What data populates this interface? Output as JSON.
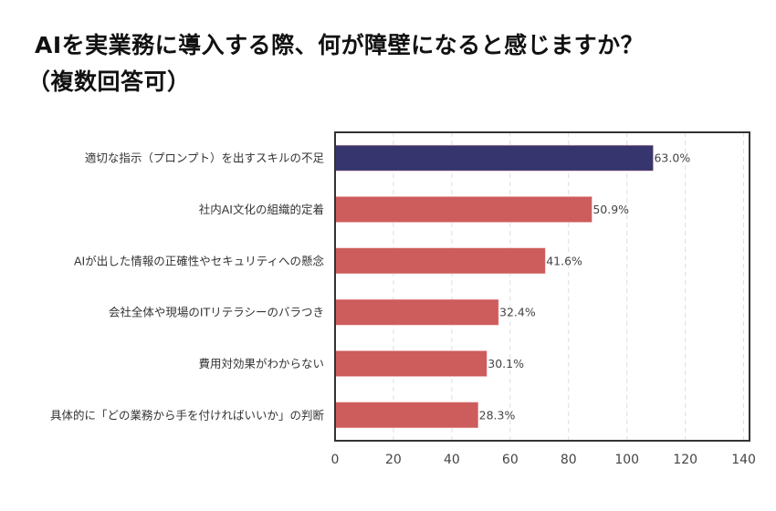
{
  "chart_data": {
    "type": "bar",
    "orientation": "horizontal",
    "title": "AIを実業務に導入する際、何が障壁になると感じますか？（複数回答可）",
    "title_lines": [
      "AIを実業務に導入する際、何が障壁になると感じますか？",
      "（複数回答可）"
    ],
    "categories": [
      "適切な指示（プロンプト）を出すスキルの不足",
      "社内AI文化の組織的定着",
      "AIが出した情報の正確性やセキュリティへの懸念",
      "会社全体や現場のITリテラシーのバラつき",
      "費用対効果がわからない",
      "具体的に「どの業務から手を付ければいいか」の判断"
    ],
    "values": [
      109,
      88,
      72,
      56,
      52,
      49
    ],
    "data_labels": [
      "63.0%",
      "50.9%",
      "41.6%",
      "32.4%",
      "30.1%",
      "28.3%"
    ],
    "bar_colors": [
      "#36356e",
      "#cd5c5c",
      "#cd5c5c",
      "#cd5c5c",
      "#cd5c5c",
      "#cd5c5c"
    ],
    "xlim": [
      0,
      142
    ],
    "xticks": [
      0,
      20,
      40,
      60,
      80,
      100,
      120,
      140
    ],
    "xlabel": "",
    "ylabel": "",
    "grid": "vertical dashed"
  }
}
